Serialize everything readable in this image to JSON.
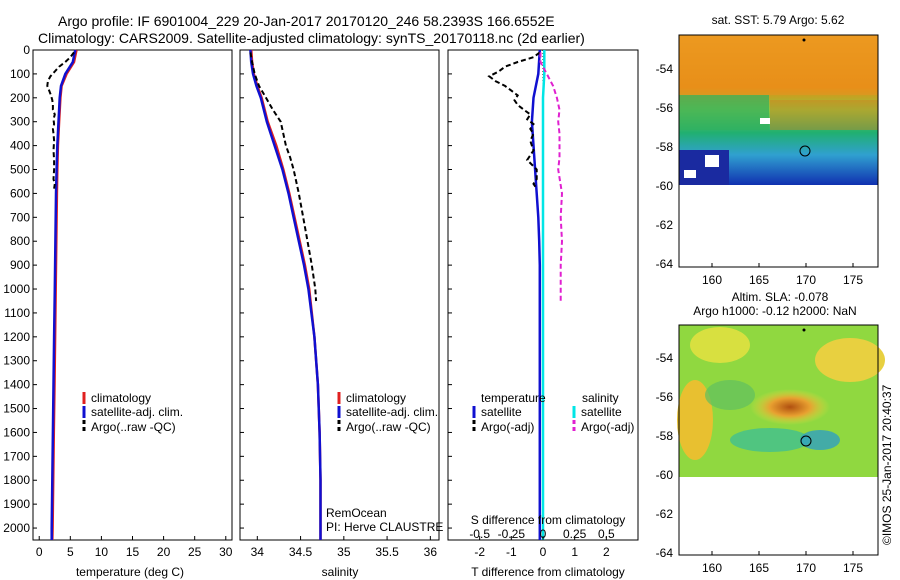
{
  "titles": {
    "line1": "Argo profile: IF 6901004_229 20-Jan-2017 20170120_246 58.2393S 166.6552E",
    "line2": "Climatology: CARS2009. Satellite-adjusted climatology: synTS_20170118.nc (2d earlier)"
  },
  "colors": {
    "climatology": "#e02020",
    "satellite": "#1010d0",
    "argo": "#000000",
    "sal_satellite": "#00e6e6",
    "sal_argo": "#e020d0"
  },
  "depth_ticks": [
    0,
    100,
    200,
    300,
    400,
    500,
    600,
    700,
    800,
    900,
    1000,
    1100,
    1200,
    1300,
    1400,
    1500,
    1600,
    1700,
    1800,
    1900,
    2000
  ],
  "legend": {
    "climatology": "climatology",
    "satellite": "satellite-adj. clim.",
    "argo": "Argo(..raw -QC)",
    "diff_temperature": "temperature",
    "diff_salinity": "salinity",
    "diff_satellite": "satellite",
    "diff_argo": "Argo(-adj)"
  },
  "credits": {
    "line1": "RemOcean",
    "line2": "PI: Herve CLAUSTRE"
  },
  "maps": {
    "sst_title": "sat. SST: 5.79 Argo: 5.62",
    "sla_title1": "Altim. SLA: -0.078",
    "sla_title2": "Argo h1000: -0.12 h2000: NaN",
    "lat_ticks": [
      "-54",
      "-56",
      "-58",
      "-60",
      "-62",
      "-64"
    ],
    "lon_ticks": [
      "160",
      "165",
      "170",
      "175"
    ],
    "argo_marker": "circle-marker"
  },
  "watermark": "©IMOS 25-Jan-2017 20:40:37",
  "chart_data": [
    {
      "type": "line",
      "xlabel": "temperature (deg C)",
      "ylabel": "",
      "xlim": [
        -1,
        31
      ],
      "ylim": [
        2050,
        0
      ],
      "xticks": [
        0,
        5,
        10,
        15,
        20,
        25,
        30
      ],
      "series": [
        {
          "name": "climatology",
          "depth": [
            0,
            50,
            100,
            150,
            200,
            300,
            400,
            500,
            600,
            800,
            1000,
            1200,
            1400,
            1600,
            1800,
            2000,
            2050
          ],
          "values": [
            6.0,
            5.6,
            4.4,
            3.6,
            3.4,
            3.2,
            3.0,
            2.9,
            2.85,
            2.75,
            2.65,
            2.55,
            2.45,
            2.35,
            2.25,
            2.15,
            2.1
          ]
        },
        {
          "name": "satellite-adj. clim.",
          "depth": [
            0,
            50,
            100,
            150,
            200,
            300,
            400,
            500,
            600,
            800,
            1000,
            1200,
            1400,
            1600,
            1800,
            2000,
            2050
          ],
          "values": [
            5.8,
            5.4,
            4.2,
            3.5,
            3.3,
            3.1,
            2.9,
            2.8,
            2.7,
            2.6,
            2.5,
            2.4,
            2.3,
            2.2,
            2.1,
            2.0,
            2.0
          ]
        },
        {
          "name": "Argo(..raw -QC)",
          "depth": [
            10,
            30,
            50,
            70,
            90,
            110,
            130,
            150,
            170,
            190,
            210,
            230,
            250,
            270,
            290,
            310,
            330,
            350,
            380,
            420,
            460,
            500,
            540,
            560,
            580
          ],
          "values": [
            5.6,
            5.0,
            4.2,
            3.2,
            2.5,
            1.8,
            1.4,
            1.3,
            1.6,
            1.9,
            2.1,
            2.2,
            2.2,
            2.5,
            2.3,
            2.4,
            2.2,
            2.3,
            2.4,
            2.3,
            2.4,
            2.4,
            2.3,
            2.5,
            2.4
          ]
        }
      ]
    },
    {
      "type": "line",
      "xlabel": "salinity",
      "ylabel": "",
      "xlim": [
        33.8,
        36.1
      ],
      "ylim": [
        2050,
        0
      ],
      "xticks": [
        34,
        34.5,
        35,
        35.5,
        36
      ],
      "series": [
        {
          "name": "climatology",
          "depth": [
            0,
            50,
            100,
            150,
            200,
            300,
            400,
            500,
            600,
            700,
            800,
            900,
            1000,
            1200,
            1400,
            1600,
            1800,
            2000,
            2050
          ],
          "values": [
            33.93,
            33.94,
            33.96,
            34.0,
            34.05,
            34.12,
            34.22,
            34.3,
            34.37,
            34.43,
            34.49,
            34.55,
            34.6,
            34.66,
            34.7,
            34.72,
            34.73,
            34.73,
            34.73
          ]
        },
        {
          "name": "satellite-adj. clim.",
          "depth": [
            0,
            50,
            100,
            150,
            200,
            300,
            400,
            500,
            600,
            700,
            800,
            900,
            1000,
            1200,
            1400,
            1600,
            1800,
            2000,
            2050
          ],
          "values": [
            33.92,
            33.93,
            33.95,
            33.99,
            34.04,
            34.11,
            34.2,
            34.29,
            34.36,
            34.42,
            34.48,
            34.54,
            34.59,
            34.66,
            34.7,
            34.72,
            34.73,
            34.73,
            34.73
          ]
        },
        {
          "name": "Argo(..raw -QC)",
          "depth": [
            10,
            50,
            100,
            150,
            200,
            250,
            300,
            350,
            400,
            450,
            500,
            600,
            700,
            800,
            900,
            1000,
            1050
          ],
          "values": [
            33.92,
            33.94,
            33.97,
            34.02,
            34.1,
            34.18,
            34.27,
            34.3,
            34.33,
            34.38,
            34.42,
            34.48,
            34.53,
            34.58,
            34.63,
            34.67,
            34.68
          ]
        }
      ]
    },
    {
      "type": "line",
      "xlabel": "T difference from climatology",
      "ylabel": "",
      "secondary_xlabel": "S difference from climatology",
      "xlim": [
        -3,
        3
      ],
      "ylim": [
        2050,
        0
      ],
      "xticks_T": [
        -2,
        -1,
        0,
        1,
        2
      ],
      "xticks_S": [
        -0.5,
        -0.25,
        0,
        0.25,
        0.5
      ],
      "series": [
        {
          "name": "temperature satellite",
          "depth": [
            0,
            100,
            200,
            300,
            400,
            500,
            600,
            700,
            800,
            900,
            1000,
            1200,
            1400,
            1600,
            1800,
            2000,
            2050
          ],
          "values": [
            -0.1,
            -0.15,
            -0.3,
            -0.35,
            -0.3,
            -0.25,
            -0.2,
            -0.15,
            -0.12,
            -0.1,
            -0.1,
            -0.1,
            -0.1,
            -0.1,
            -0.1,
            -0.1,
            -0.1
          ]
        },
        {
          "name": "temperature Argo(-adj)",
          "depth": [
            10,
            30,
            50,
            70,
            90,
            110,
            130,
            150,
            170,
            190,
            210,
            230,
            250,
            270,
            290,
            310,
            330,
            350,
            380,
            420,
            460,
            500,
            540,
            560,
            580
          ],
          "values": [
            -0.1,
            -0.3,
            -0.8,
            -1.2,
            -1.4,
            -1.7,
            -1.5,
            -1.2,
            -1.0,
            -0.8,
            -0.9,
            -0.8,
            -0.6,
            -0.4,
            -0.5,
            -0.3,
            -0.4,
            -0.3,
            -0.4,
            -0.3,
            -0.5,
            -0.2,
            -0.2,
            -0.3,
            -0.2
          ]
        },
        {
          "name": "salinity satellite",
          "depth": [
            0,
            100,
            200,
            300,
            400,
            500,
            600,
            800,
            1000,
            1200,
            1400,
            1600,
            1800,
            2000,
            2050
          ],
          "values": [
            0.01,
            0.01,
            0.0,
            0.0,
            0.0,
            0.0,
            0.0,
            0.0,
            0.0,
            0.0,
            0.0,
            0.0,
            0.0,
            0.0,
            0.0
          ]
        },
        {
          "name": "salinity Argo(-adj)",
          "depth": [
            10,
            50,
            100,
            150,
            200,
            250,
            300,
            350,
            400,
            450,
            500,
            600,
            700,
            800,
            900,
            1000,
            1050
          ],
          "values": [
            -0.02,
            -0.02,
            0.03,
            0.08,
            0.11,
            0.13,
            0.12,
            0.13,
            0.13,
            0.13,
            0.12,
            0.15,
            0.14,
            0.15,
            0.14,
            0.14,
            0.14
          ]
        }
      ]
    }
  ]
}
